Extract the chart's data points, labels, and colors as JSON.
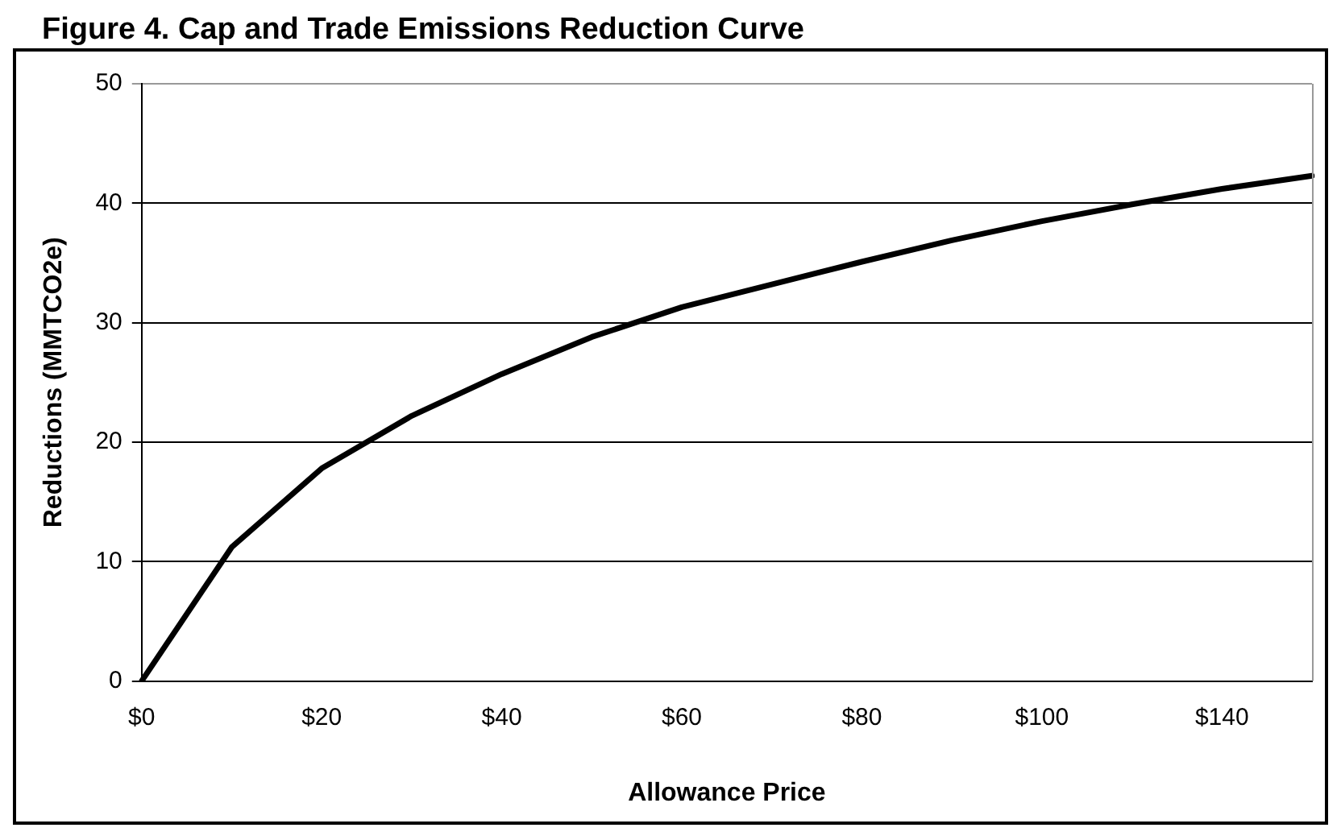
{
  "chart_data": {
    "type": "line",
    "title": "Figure 4. Cap and Trade Emissions Reduction Curve",
    "xlabel": "Allowance Price",
    "ylabel": "Reductions (MMTCO2e)",
    "categories": [
      "$0",
      null,
      "$20",
      null,
      "$40",
      null,
      "$60",
      null,
      "$80",
      null,
      "$100",
      null,
      "$140",
      null
    ],
    "series": [
      {
        "color": "#000000",
        "values": [
          0,
          11.2,
          17.8,
          22.2,
          25.7,
          28.8,
          31.3,
          33.2,
          35.1,
          36.9,
          38.5,
          39.9,
          41.2,
          42.3
        ]
      }
    ],
    "ylim": [
      0,
      50
    ],
    "yticks": [
      0,
      10,
      20,
      30,
      40,
      50
    ],
    "grid": "y",
    "legend": false,
    "marker": "none",
    "line_style": "solid"
  }
}
